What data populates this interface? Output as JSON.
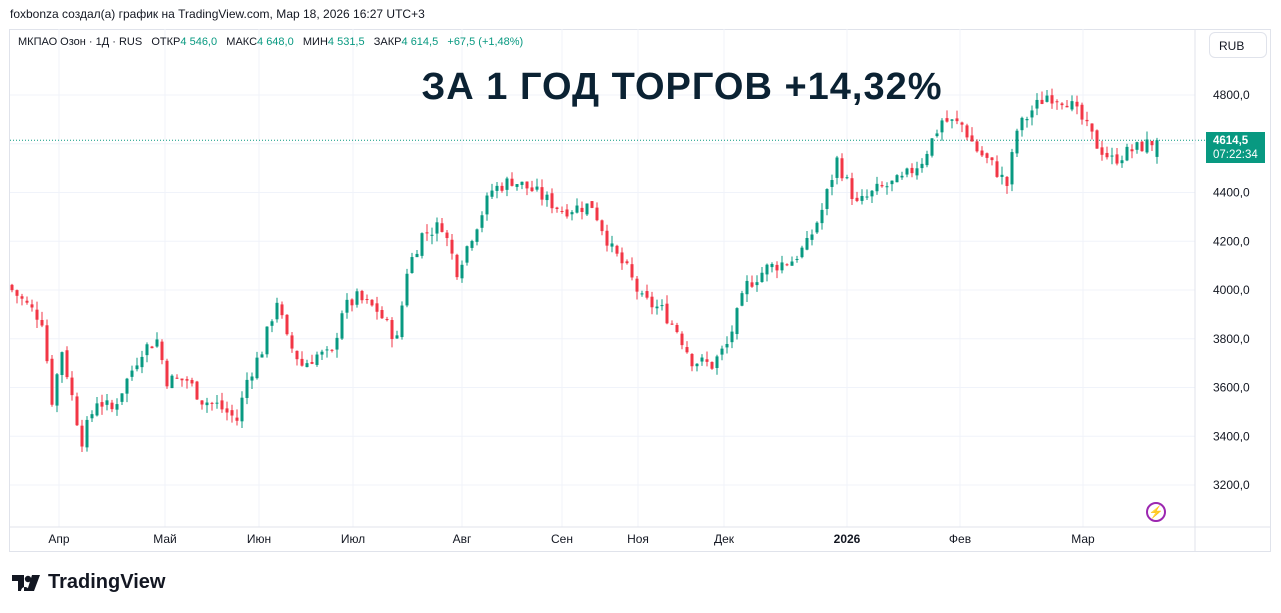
{
  "credit": "foxbonza создал(а) график на TradingView.com, Мар 18, 2026 16:27 UTC+3",
  "legend": {
    "symbol": "МКПАО Озон · 1Д · RUS",
    "open_label": "ОТКР",
    "open": "4 546,0",
    "high_label": "МАКС",
    "high": "4 648,0",
    "low_label": "МИН",
    "low": "4 531,5",
    "close_label": "ЗАКР",
    "close": "4 614,5",
    "change": "+67,5 (+1,48%)"
  },
  "headline": "ЗА 1 ГОД ТОРГОВ +14,32%",
  "currency": "RUB",
  "price_tag": {
    "price": "4614,5",
    "countdown": "07:22:34"
  },
  "brand": "TradingView",
  "colors": {
    "up": "#089981",
    "down": "#f23645",
    "grid": "#f0f3fa",
    "headline": "#0b2233"
  },
  "chart_data": {
    "type": "candlestick",
    "title": "ЗА 1 ГОД ТОРГОВ +14,32%",
    "ylim": [
      3080,
      4920
    ],
    "yticks": [
      {
        "v": 3200,
        "label": "3200,0"
      },
      {
        "v": 3400,
        "label": "3400,0"
      },
      {
        "v": 3600,
        "label": "3600,0"
      },
      {
        "v": 3800,
        "label": "3800,0"
      },
      {
        "v": 4000,
        "label": "4000,0"
      },
      {
        "v": 4200,
        "label": "4200,0"
      },
      {
        "v": 4400,
        "label": "4400,0"
      },
      {
        "v": 4600,
        "label": "4600,0"
      },
      {
        "v": 4800,
        "label": "4800,0"
      }
    ],
    "xticks": [
      {
        "i": 9.4,
        "label": "Апр"
      },
      {
        "i": 30.6,
        "label": "Май"
      },
      {
        "i": 49.4,
        "label": "Июн"
      },
      {
        "i": 68.2,
        "label": "Июл"
      },
      {
        "i": 90,
        "label": "Авг"
      },
      {
        "i": 110,
        "label": "Сен"
      },
      {
        "i": 125.2,
        "label": "Ноя"
      },
      {
        "i": 142.4,
        "label": "Дек"
      },
      {
        "i": 167,
        "label": "2026",
        "bold": true
      },
      {
        "i": 189.6,
        "label": "Фев"
      },
      {
        "i": 214.2,
        "label": "Мар"
      }
    ],
    "last_price": 4614.5,
    "close_path": [
      [
        0,
        4000
      ],
      [
        6,
        3877
      ],
      [
        8,
        3549
      ],
      [
        10,
        3754
      ],
      [
        13,
        3467
      ],
      [
        14,
        3385
      ],
      [
        17,
        3549
      ],
      [
        20,
        3508
      ],
      [
        23,
        3631
      ],
      [
        26,
        3754
      ],
      [
        29,
        3795
      ],
      [
        31,
        3631
      ],
      [
        35,
        3631
      ],
      [
        38,
        3549
      ],
      [
        41,
        3528
      ],
      [
        45,
        3467
      ],
      [
        47,
        3631
      ],
      [
        50,
        3754
      ],
      [
        53,
        3959
      ],
      [
        55,
        3795
      ],
      [
        58,
        3692
      ],
      [
        61,
        3733
      ],
      [
        64,
        3733
      ],
      [
        66,
        3918
      ],
      [
        69,
        3967
      ],
      [
        73,
        3918
      ],
      [
        77,
        3795
      ],
      [
        79,
        4082
      ],
      [
        82,
        4226
      ],
      [
        86,
        4267
      ],
      [
        89,
        4082
      ],
      [
        92,
        4226
      ],
      [
        96,
        4410
      ],
      [
        100,
        4451
      ],
      [
        104,
        4410
      ],
      [
        110,
        4328
      ],
      [
        116,
        4349
      ],
      [
        120,
        4164
      ],
      [
        123,
        4082
      ],
      [
        126,
        3959
      ],
      [
        130,
        3918
      ],
      [
        133,
        3836
      ],
      [
        136,
        3713
      ],
      [
        140,
        3692
      ],
      [
        143,
        3774
      ],
      [
        147,
        4020
      ],
      [
        151,
        4090
      ],
      [
        156,
        4123
      ],
      [
        159,
        4185
      ],
      [
        162,
        4328
      ],
      [
        165,
        4533
      ],
      [
        169,
        4349
      ],
      [
        173,
        4410
      ],
      [
        178,
        4451
      ],
      [
        182,
        4533
      ],
      [
        186,
        4697
      ],
      [
        190,
        4677
      ],
      [
        193,
        4574
      ],
      [
        196,
        4513
      ],
      [
        199,
        4431
      ],
      [
        201,
        4656
      ],
      [
        204,
        4738
      ],
      [
        207,
        4800
      ],
      [
        211,
        4779
      ],
      [
        214,
        4697
      ],
      [
        217,
        4595
      ],
      [
        220,
        4533
      ],
      [
        224,
        4574
      ],
      [
        229,
        4614.5
      ]
    ]
  }
}
